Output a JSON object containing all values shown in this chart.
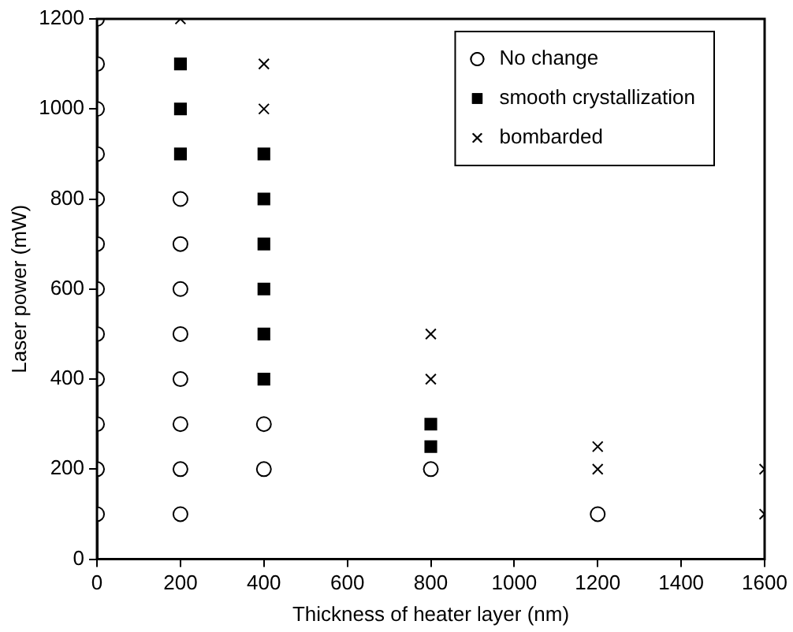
{
  "chart_data": {
    "type": "scatter",
    "xlabel": "Thickness of heater layer (nm)",
    "ylabel": "Laser power (mW)",
    "xlim": [
      0,
      1600
    ],
    "xticks": [
      0,
      200,
      400,
      600,
      800,
      1000,
      1200,
      1400,
      1600
    ],
    "ylim": [
      0,
      1200
    ],
    "yticks": [
      0,
      200,
      400,
      600,
      800,
      1000,
      1200
    ],
    "grid": false,
    "legend": "top right",
    "series": [
      {
        "name": "No change",
        "color": "#000000",
        "marker": "circle",
        "x": [
          0,
          0,
          0,
          0,
          0,
          0,
          0,
          0,
          0,
          0,
          0,
          0,
          200,
          200,
          200,
          200,
          200,
          200,
          200,
          200,
          400,
          400,
          800,
          1200
        ],
        "values": [
          100,
          200,
          300,
          400,
          500,
          600,
          700,
          800,
          900,
          1000,
          1100,
          1200,
          100,
          200,
          300,
          400,
          500,
          600,
          700,
          800,
          200,
          300,
          200,
          100
        ]
      },
      {
        "name": "smooth crystallization",
        "color": "#000000",
        "marker": "square",
        "x": [
          200,
          200,
          200,
          400,
          400,
          400,
          400,
          400,
          400,
          800,
          800
        ],
        "values": [
          900,
          1000,
          1100,
          400,
          500,
          600,
          700,
          800,
          900,
          250,
          300
        ]
      },
      {
        "name": "bombarded",
        "color": "#000000",
        "marker": "cross",
        "x": [
          200,
          400,
          400,
          800,
          800,
          1200,
          1200,
          1600,
          1600
        ],
        "values": [
          1200,
          1000,
          1100,
          400,
          500,
          200,
          250,
          100,
          200
        ]
      }
    ]
  }
}
